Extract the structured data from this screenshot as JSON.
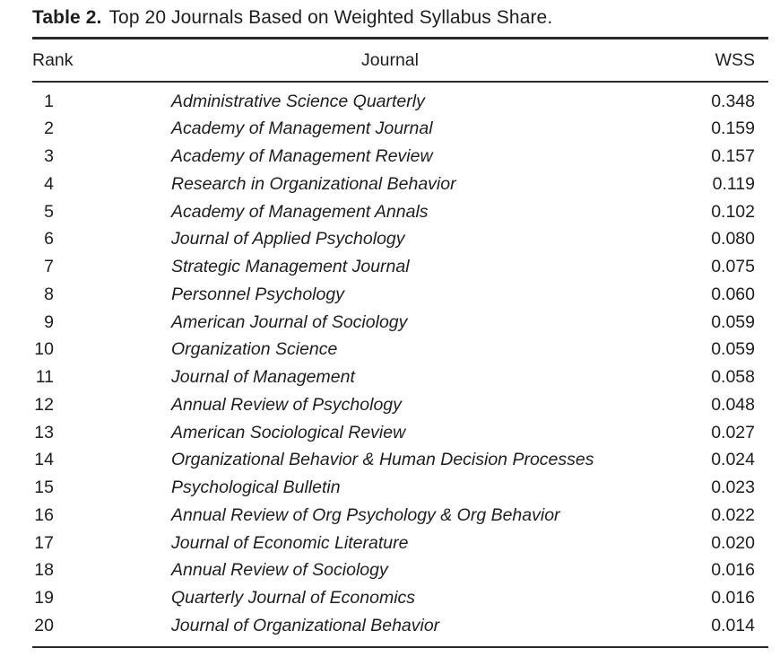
{
  "caption": {
    "label": "Table 2.",
    "text": "Top 20 Journals Based on Weighted Syllabus Share."
  },
  "table": {
    "headers": {
      "rank": "Rank",
      "journal": "Journal",
      "wss": "WSS"
    },
    "rows": [
      {
        "rank": "1",
        "journal": "Administrative Science Quarterly",
        "wss": "0.348"
      },
      {
        "rank": "2",
        "journal": "Academy of Management Journal",
        "wss": "0.159"
      },
      {
        "rank": "3",
        "journal": "Academy of Management Review",
        "wss": "0.157"
      },
      {
        "rank": "4",
        "journal": "Research in Organizational Behavior",
        "wss": "0.119"
      },
      {
        "rank": "5",
        "journal": "Academy of Management Annals",
        "wss": "0.102"
      },
      {
        "rank": "6",
        "journal": "Journal of Applied Psychology",
        "wss": "0.080"
      },
      {
        "rank": "7",
        "journal": "Strategic Management Journal",
        "wss": "0.075"
      },
      {
        "rank": "8",
        "journal": "Personnel Psychology",
        "wss": "0.060"
      },
      {
        "rank": "9",
        "journal": "American Journal of Sociology",
        "wss": "0.059"
      },
      {
        "rank": "10",
        "journal": "Organization Science",
        "wss": "0.059"
      },
      {
        "rank": "11",
        "journal": "Journal of Management",
        "wss": "0.058"
      },
      {
        "rank": "12",
        "journal": "Annual Review of Psychology",
        "wss": "0.048"
      },
      {
        "rank": "13",
        "journal": "American Sociological Review",
        "wss": "0.027"
      },
      {
        "rank": "14",
        "journal": "Organizational Behavior & Human Decision Processes",
        "wss": "0.024"
      },
      {
        "rank": "15",
        "journal": "Psychological Bulletin",
        "wss": "0.023"
      },
      {
        "rank": "16",
        "journal": "Annual Review of Org Psychology & Org Behavior",
        "wss": "0.022"
      },
      {
        "rank": "17",
        "journal": "Journal of Economic Literature",
        "wss": "0.020"
      },
      {
        "rank": "18",
        "journal": "Annual Review of Sociology",
        "wss": "0.016"
      },
      {
        "rank": "19",
        "journal": "Quarterly Journal of Economics",
        "wss": "0.016"
      },
      {
        "rank": "20",
        "journal": "Journal of Organizational Behavior",
        "wss": "0.014"
      }
    ]
  }
}
